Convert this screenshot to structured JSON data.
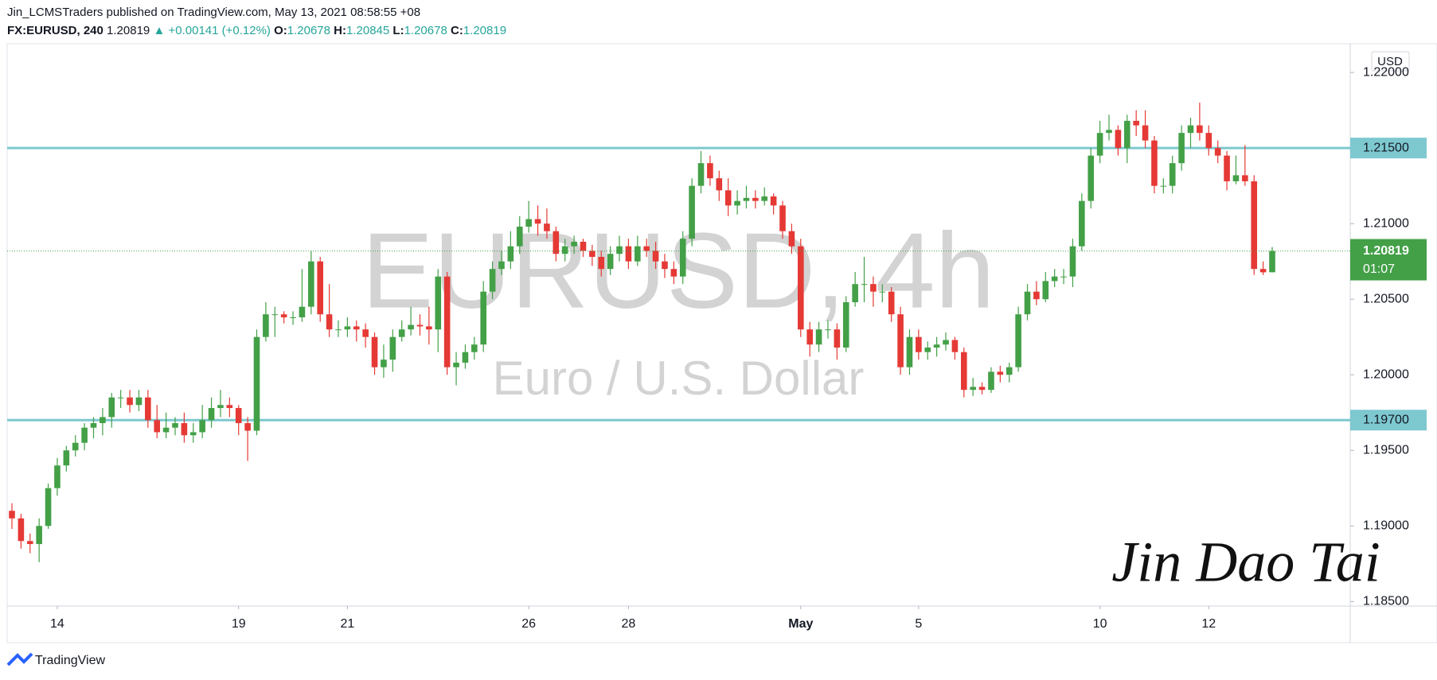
{
  "header": {
    "publisher": "Jin_LCMSTraders published on TradingView.com, May 13, 2021 08:58:55 +08",
    "symbol": "FX:EURUSD, 240",
    "last": "1.20819",
    "arrow": "▲",
    "change": "+0.00141 (+0.12%)",
    "o_label": "O:",
    "o": "1.20678",
    "h_label": "H:",
    "h": "1.20845",
    "l_label": "L:",
    "l": "1.20678",
    "c_label": "C:",
    "c": "1.20819"
  },
  "chart_data": {
    "type": "candlestick",
    "watermark": "EURUSD, 4h",
    "watermark_sub": "Euro / U.S. Dollar",
    "currency": "USD",
    "signature": "Jin Dao Tai",
    "footer": "TradingView",
    "up_color": "#43a047",
    "down_color": "#e53935",
    "hline_color": "#7ec8d0",
    "grid": false,
    "ylim": [
      1.1847,
      1.2219
    ],
    "yticks": [
      {
        "value": 1.185,
        "label": "1.18500"
      },
      {
        "value": 1.19,
        "label": "1.19000"
      },
      {
        "value": 1.195,
        "label": "1.19500"
      },
      {
        "value": 1.2,
        "label": "1.20000"
      },
      {
        "value": 1.205,
        "label": "1.20500"
      },
      {
        "value": 1.21,
        "label": "1.21000"
      },
      {
        "value": 1.22,
        "label": "1.22000"
      }
    ],
    "hlines": [
      {
        "value": 1.215,
        "label": "1.21500"
      },
      {
        "value": 1.197,
        "label": "1.19700"
      }
    ],
    "last_price": 1.20819,
    "countdown": "01:07",
    "x": [
      null,
      null,
      null,
      null,
      null,
      "14",
      null,
      null,
      null,
      null,
      null,
      null,
      null,
      null,
      null,
      null,
      null,
      null,
      null,
      null,
      null,
      null,
      null,
      null,
      null,
      "19",
      null,
      null,
      null,
      null,
      null,
      null,
      null,
      null,
      null,
      null,
      null,
      "21",
      null,
      null,
      null,
      null,
      null,
      null,
      null,
      null,
      null,
      null,
      null,
      null,
      null,
      null,
      null,
      null,
      null,
      null,
      null,
      "26",
      null,
      null,
      null,
      null,
      null,
      null,
      null,
      null,
      null,
      null,
      "28",
      null,
      null,
      null,
      null,
      null,
      null,
      null,
      null,
      null,
      null,
      null,
      null,
      null,
      null,
      null,
      null,
      null,
      null,
      "May",
      null,
      null,
      null,
      null,
      null,
      null,
      null,
      null,
      null,
      null,
      null,
      null,
      "5",
      null,
      null,
      null,
      null,
      null,
      null,
      null,
      null,
      null,
      null,
      null,
      null,
      null,
      null,
      null,
      null,
      null,
      null,
      null,
      "10",
      null,
      null,
      null,
      null,
      null,
      null,
      null,
      null,
      null,
      null,
      null,
      "12",
      null,
      null,
      null,
      null,
      null,
      null,
      null
    ],
    "open": [
      1.191,
      1.1905,
      1.189,
      1.1888,
      1.19,
      1.1925,
      1.194,
      1.195,
      1.1955,
      1.1965,
      1.1968,
      1.1972,
      1.1985,
      1.1985,
      1.198,
      1.1985,
      1.197,
      1.1962,
      1.1965,
      1.1968,
      1.196,
      1.1962,
      1.197,
      1.1978,
      1.198,
      1.1978,
      1.1968,
      1.1963,
      1.2025,
      1.204,
      1.204,
      1.2038,
      1.2038,
      1.2045,
      1.2075,
      1.204,
      1.203,
      1.203,
      1.2032,
      1.203,
      1.2025,
      1.2005,
      1.201,
      1.2025,
      1.203,
      1.2033,
      1.2032,
      1.203,
      1.2065,
      1.2005,
      1.2008,
      1.2015,
      1.202,
      1.2055,
      1.207,
      1.2075,
      1.2085,
      1.2098,
      1.2103,
      1.21,
      1.2095,
      1.208,
      1.2085,
      1.2088,
      1.2082,
      1.2078,
      1.207,
      1.208,
      1.2085,
      1.2075,
      1.2085,
      1.2082,
      1.2075,
      1.207,
      1.2065,
      1.209,
      1.2125,
      1.214,
      1.213,
      1.2122,
      1.2112,
      1.2115,
      1.2117,
      1.2115,
      1.2118,
      1.2112,
      1.2095,
      1.2085,
      1.203,
      1.202,
      1.203,
      1.203,
      1.2018,
      1.2048,
      1.206,
      1.206,
      1.2055,
      1.2055,
      1.204,
      1.2005,
      1.2025,
      1.2015,
      1.2018,
      1.202,
      1.2023,
      1.2015,
      1.199,
      1.1992,
      1.199,
      1.2002,
      1.2,
      1.2005,
      1.204,
      1.2055,
      1.205,
      1.2062,
      1.2065,
      1.2065,
      1.2085,
      1.2115,
      1.2145,
      1.216,
      1.2162,
      1.215,
      1.2168,
      1.2165,
      1.2155,
      1.2125,
      1.2125,
      1.214,
      1.216,
      1.2165,
      1.216,
      1.215,
      1.2145,
      1.2128,
      1.2132,
      1.2128,
      1.207,
      1.20678
    ],
    "high": [
      1.1915,
      1.1908,
      1.1895,
      1.1905,
      1.1928,
      1.1945,
      1.1953,
      1.196,
      1.1968,
      1.1972,
      1.1978,
      1.1988,
      1.199,
      1.199,
      1.199,
      1.199,
      1.198,
      1.1975,
      1.1972,
      1.1975,
      1.1968,
      1.198,
      1.1985,
      1.199,
      1.1985,
      1.198,
      1.1972,
      1.203,
      1.2048,
      1.2045,
      1.2042,
      1.2042,
      1.207,
      1.2082,
      1.2078,
      1.206,
      1.2036,
      1.2038,
      1.2036,
      1.2034,
      1.2028,
      1.202,
      1.203,
      1.2036,
      1.2045,
      1.204,
      1.2045,
      1.207,
      1.2068,
      1.2015,
      1.202,
      1.2025,
      1.2062,
      1.2075,
      1.2082,
      1.2095,
      1.2105,
      1.2115,
      1.2112,
      1.211,
      1.2098,
      1.209,
      1.2092,
      1.209,
      1.2086,
      1.2082,
      1.2085,
      1.2092,
      1.209,
      1.2092,
      1.209,
      1.2088,
      1.208,
      1.2075,
      1.2095,
      1.213,
      1.2148,
      1.2145,
      1.2135,
      1.213,
      1.2122,
      1.2125,
      1.2122,
      1.2124,
      1.212,
      1.2115,
      1.21,
      1.209,
      1.2035,
      1.2035,
      1.2036,
      1.2034,
      1.2052,
      1.2068,
      1.2078,
      1.2065,
      1.206,
      1.2058,
      1.2045,
      1.203,
      1.203,
      1.2022,
      1.2025,
      1.2028,
      1.2025,
      1.2018,
      1.1998,
      1.1995,
      1.2005,
      1.2006,
      1.2008,
      1.2045,
      1.206,
      1.2062,
      1.2068,
      1.207,
      1.207,
      1.209,
      1.212,
      1.215,
      1.2168,
      1.2172,
      1.2165,
      1.2172,
      1.2175,
      1.2175,
      1.2158,
      1.213,
      1.2145,
      1.2165,
      1.217,
      1.218,
      1.2165,
      1.2155,
      1.2148,
      1.2145,
      1.2152,
      1.2132,
      1.2075,
      1.20845
    ],
    "low": [
      1.1898,
      1.1885,
      1.1882,
      1.1876,
      1.1898,
      1.192,
      1.1936,
      1.1946,
      1.195,
      1.1958,
      1.196,
      1.1965,
      1.1978,
      1.1975,
      1.1976,
      1.1965,
      1.1958,
      1.1958,
      1.196,
      1.1955,
      1.1955,
      1.1958,
      1.1965,
      1.1972,
      1.1972,
      1.196,
      1.1943,
      1.196,
      1.2022,
      1.2025,
      1.2034,
      1.2033,
      1.2035,
      1.204,
      1.2035,
      1.2025,
      1.2025,
      1.2025,
      1.2022,
      1.2018,
      1.2,
      1.1998,
      1.2002,
      1.2022,
      1.2026,
      1.2026,
      1.202,
      1.2015,
      1.2,
      1.1993,
      1.2004,
      1.201,
      1.2015,
      1.205,
      1.2066,
      1.207,
      1.208,
      1.2094,
      1.2092,
      1.209,
      1.2075,
      1.2075,
      1.208,
      1.2078,
      1.2072,
      1.2065,
      1.2066,
      1.2075,
      1.207,
      1.2072,
      1.2078,
      1.207,
      1.2064,
      1.206,
      1.206,
      1.2085,
      1.212,
      1.2125,
      1.2115,
      1.2105,
      1.2106,
      1.211,
      1.211,
      1.2112,
      1.2106,
      1.209,
      1.208,
      1.2025,
      1.2012,
      1.2015,
      1.2024,
      1.201,
      1.2015,
      1.2045,
      1.2048,
      1.2045,
      1.2048,
      1.2035,
      1.2,
      1.2,
      1.201,
      1.201,
      1.2012,
      1.2016,
      1.201,
      1.1985,
      1.1986,
      1.1987,
      1.1988,
      1.1995,
      1.1995,
      1.2002,
      1.2036,
      1.2046,
      1.2048,
      1.2058,
      1.206,
      1.2058,
      1.2082,
      1.211,
      1.214,
      1.2155,
      1.2145,
      1.214,
      1.2158,
      1.215,
      1.212,
      1.212,
      1.212,
      1.2135,
      1.215,
      1.2155,
      1.2145,
      1.214,
      1.2122,
      1.2126,
      1.2125,
      1.2066,
      1.2066,
      1.20678
    ],
    "close": [
      1.1905,
      1.189,
      1.1888,
      1.19,
      1.1925,
      1.194,
      1.195,
      1.1955,
      1.1965,
      1.1968,
      1.1972,
      1.1985,
      1.1985,
      1.198,
      1.1985,
      1.197,
      1.1962,
      1.1965,
      1.1968,
      1.196,
      1.1962,
      1.197,
      1.1978,
      1.198,
      1.1978,
      1.1968,
      1.1963,
      1.2025,
      1.204,
      1.204,
      1.2038,
      1.2038,
      1.2045,
      1.2075,
      1.204,
      1.203,
      1.203,
      1.2032,
      1.203,
      1.2025,
      1.2005,
      1.201,
      1.2025,
      1.203,
      1.2033,
      1.2032,
      1.203,
      1.2065,
      1.2005,
      1.2008,
      1.2015,
      1.202,
      1.2055,
      1.207,
      1.2075,
      1.2085,
      1.2098,
      1.2103,
      1.21,
      1.2095,
      1.208,
      1.2085,
      1.2088,
      1.2082,
      1.2078,
      1.207,
      1.208,
      1.2085,
      1.2075,
      1.2085,
      1.2082,
      1.2075,
      1.207,
      1.2065,
      1.209,
      1.2125,
      1.214,
      1.213,
      1.2122,
      1.2112,
      1.2115,
      1.2117,
      1.2115,
      1.2118,
      1.2112,
      1.2095,
      1.2085,
      1.203,
      1.202,
      1.203,
      1.203,
      1.2018,
      1.2048,
      1.206,
      1.206,
      1.2055,
      1.2055,
      1.204,
      1.2005,
      1.2025,
      1.2015,
      1.2018,
      1.202,
      1.2023,
      1.2015,
      1.199,
      1.1992,
      1.199,
      1.2002,
      1.2,
      1.2005,
      1.204,
      1.2055,
      1.205,
      1.2062,
      1.2065,
      1.2065,
      1.2085,
      1.2115,
      1.2145,
      1.216,
      1.2162,
      1.215,
      1.2168,
      1.2165,
      1.2155,
      1.2125,
      1.2125,
      1.214,
      1.216,
      1.2165,
      1.216,
      1.215,
      1.2145,
      1.2128,
      1.2132,
      1.2128,
      1.207,
      1.20678,
      1.20819
    ]
  }
}
